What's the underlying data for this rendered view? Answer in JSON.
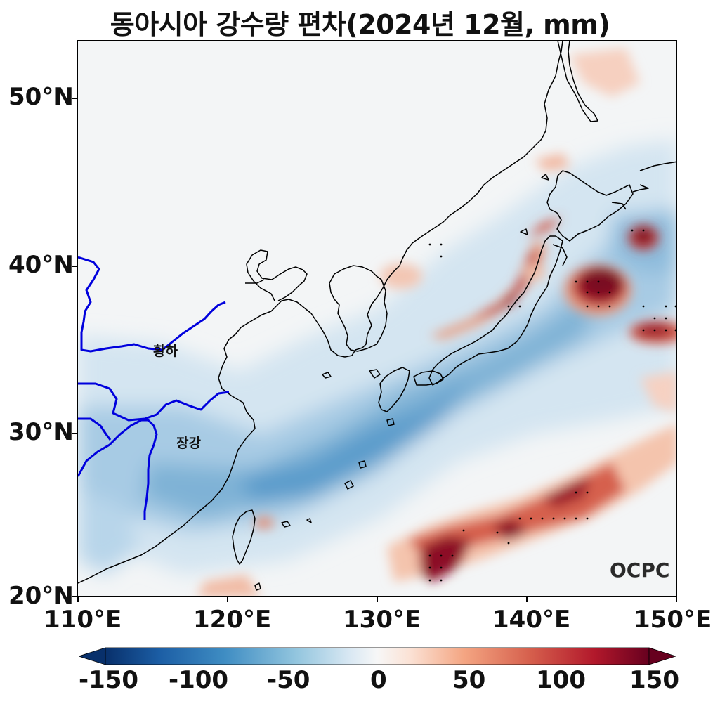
{
  "title": "동아시아 강수량 편차(2024년 12월, mm)",
  "lat_ticks": [
    "50°N",
    "40°N",
    "30°N",
    "20°N"
  ],
  "lon_ticks": [
    "110°E",
    "120°E",
    "130°E",
    "140°E",
    "150°E"
  ],
  "colorbar": {
    "labels": [
      "-150",
      "-100",
      "-50",
      "0",
      "50",
      "100",
      "150"
    ],
    "colormap": "RdBu_r",
    "min": -150,
    "max": 150
  },
  "rivers": [
    {
      "label": "황하",
      "color": "#0000dd"
    },
    {
      "label": "장강",
      "color": "#0000dd"
    }
  ],
  "logo": "OCPC",
  "colors": {
    "strong_negative": "#08306b",
    "moderate_negative": "#4a90c2",
    "weak_negative": "#c6dbef",
    "neutral": "#f7f7f7",
    "weak_positive": "#f9c8b0",
    "moderate_positive": "#d6604d",
    "strong_positive": "#67001f",
    "coast": "#000000",
    "river": "#0000dd"
  }
}
